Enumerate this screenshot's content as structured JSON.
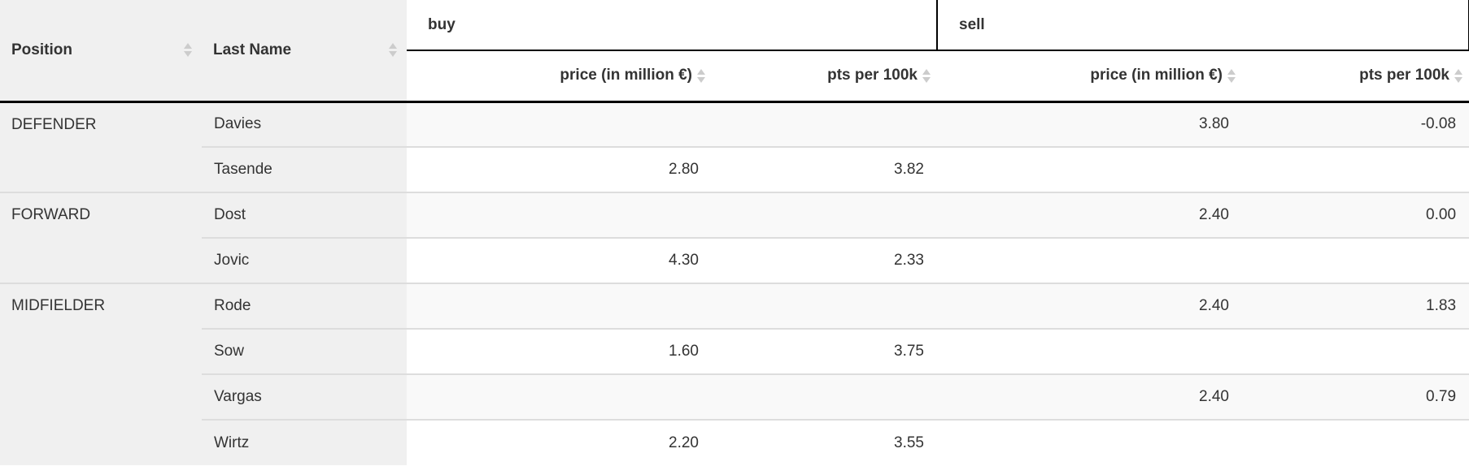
{
  "table": {
    "header": {
      "position_label": "Position",
      "last_name_label": "Last Name",
      "buy_label": "buy",
      "sell_label": "sell",
      "buy_price_label": "price (in million €)",
      "buy_pts_label": "pts per 100k",
      "sell_price_label": "price (in million €)",
      "sell_pts_label": "pts per 100k"
    },
    "groups": [
      {
        "position": "DEFENDER",
        "players": [
          {
            "last_name": "Davies",
            "buy_price": "",
            "buy_pts": "",
            "sell_price": "3.80",
            "sell_pts": "-0.08"
          },
          {
            "last_name": "Tasende",
            "buy_price": "2.80",
            "buy_pts": "3.82",
            "sell_price": "",
            "sell_pts": ""
          }
        ]
      },
      {
        "position": "FORWARD",
        "players": [
          {
            "last_name": "Dost",
            "buy_price": "",
            "buy_pts": "",
            "sell_price": "2.40",
            "sell_pts": "0.00"
          },
          {
            "last_name": "Jovic",
            "buy_price": "4.30",
            "buy_pts": "2.33",
            "sell_price": "",
            "sell_pts": ""
          }
        ]
      },
      {
        "position": "MIDFIELDER",
        "players": [
          {
            "last_name": "Rode",
            "buy_price": "",
            "buy_pts": "",
            "sell_price": "2.40",
            "sell_pts": "1.83"
          },
          {
            "last_name": "Sow",
            "buy_price": "1.60",
            "buy_pts": "3.75",
            "sell_price": "",
            "sell_pts": ""
          },
          {
            "last_name": "Vargas",
            "buy_price": "",
            "buy_pts": "",
            "sell_price": "2.40",
            "sell_pts": "0.79"
          },
          {
            "last_name": "Wirtz",
            "buy_price": "2.20",
            "buy_pts": "3.55",
            "sell_price": "",
            "sell_pts": ""
          }
        ]
      }
    ],
    "colors": {
      "header_gray_bg": "#f0f0f0",
      "stripe_row_bg": "#f9f9f9",
      "divider_black": "#000000",
      "divider_gray": "#dddddd",
      "sort_icon_gray": "#cccccc",
      "text": "#333333"
    }
  }
}
